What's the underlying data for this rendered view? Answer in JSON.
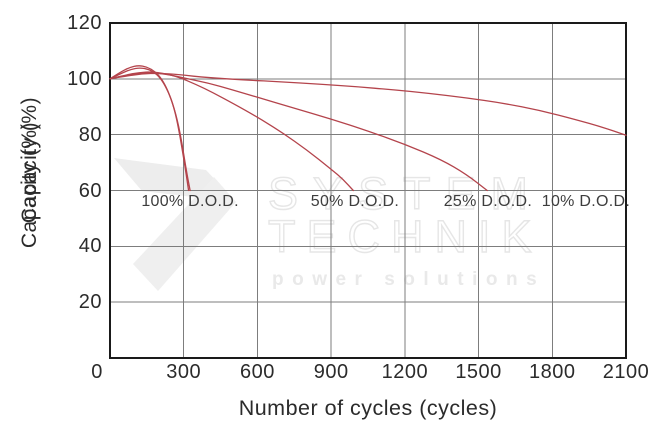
{
  "watermark": {
    "line1": "SYSTEM",
    "line2": "TECHNIK",
    "line3": "power solutions"
  },
  "chart_data": {
    "type": "line",
    "title": "",
    "xlabel": "Number of cycles (cycles)",
    "ylabel": "Capacity (%)",
    "ylabel_duplicated": true,
    "xlim": [
      0,
      2100
    ],
    "ylim": [
      0,
      120
    ],
    "x_ticks": [
      0,
      300,
      600,
      900,
      1200,
      1500,
      1800,
      2100
    ],
    "y_ticks": [
      120,
      100,
      80,
      60,
      40,
      20
    ],
    "grid": true,
    "legend": "inline annotations",
    "line_color": "#b4444c",
    "grid_color": "#7d7d7d",
    "frame_color": "#1a1a1a",
    "annotations": [
      {
        "text": "100% D.O.D.",
        "x": 326,
        "y": 55
      },
      {
        "text": "50% D.O.D.",
        "x": 997,
        "y": 55
      },
      {
        "text": "25% D.O.D.",
        "x": 1538,
        "y": 55
      },
      {
        "text": "10% D.O.D.",
        "x": 1937,
        "y": 55
      }
    ],
    "series": [
      {
        "name": "100% D.O.D.",
        "points": [
          [
            0,
            100
          ],
          [
            40,
            102.3
          ],
          [
            80,
            104.1
          ],
          [
            115,
            104.8
          ],
          [
            150,
            104.3
          ],
          [
            185,
            102.5
          ],
          [
            210,
            100
          ],
          [
            235,
            96
          ],
          [
            260,
            90
          ],
          [
            282,
            81
          ],
          [
            302,
            70.5
          ],
          [
            320,
            60
          ]
        ]
      },
      {
        "name": "100% D.O.D. (duplicate stroke)",
        "points": [
          [
            0,
            100
          ],
          [
            45,
            101.9
          ],
          [
            85,
            103.4
          ],
          [
            122,
            104
          ],
          [
            158,
            103.4
          ],
          [
            192,
            101.6
          ],
          [
            218,
            98.6
          ],
          [
            243,
            94.2
          ],
          [
            268,
            87.5
          ],
          [
            290,
            78.5
          ],
          [
            310,
            67.5
          ],
          [
            326,
            60
          ]
        ]
      },
      {
        "name": "50% D.O.D.",
        "points": [
          [
            0,
            100
          ],
          [
            60,
            101.3
          ],
          [
            120,
            102.3
          ],
          [
            170,
            102.5
          ],
          [
            220,
            101.9
          ],
          [
            280,
            100.6
          ],
          [
            350,
            98
          ],
          [
            420,
            95
          ],
          [
            500,
            91.2
          ],
          [
            600,
            86.3
          ],
          [
            700,
            80.8
          ],
          [
            800,
            74.6
          ],
          [
            900,
            67.6
          ],
          [
            950,
            63.9
          ],
          [
            990,
            60
          ]
        ]
      },
      {
        "name": "25% D.O.D.",
        "points": [
          [
            0,
            100
          ],
          [
            60,
            101.1
          ],
          [
            120,
            102
          ],
          [
            180,
            102.2
          ],
          [
            240,
            101.5
          ],
          [
            300,
            100.3
          ],
          [
            400,
            98.5
          ],
          [
            500,
            96
          ],
          [
            600,
            93.4
          ],
          [
            750,
            89.5
          ],
          [
            900,
            85.6
          ],
          [
            1050,
            81.3
          ],
          [
            1200,
            76.6
          ],
          [
            1350,
            71
          ],
          [
            1450,
            65.8
          ],
          [
            1535,
            60
          ]
        ]
      },
      {
        "name": "10% D.O.D.",
        "points": [
          [
            0,
            100
          ],
          [
            60,
            100.9
          ],
          [
            130,
            101.8
          ],
          [
            200,
            102
          ],
          [
            280,
            101.5
          ],
          [
            400,
            100.4
          ],
          [
            550,
            99.6
          ],
          [
            700,
            98.9
          ],
          [
            850,
            98.1
          ],
          [
            1000,
            97.2
          ],
          [
            1150,
            96.1
          ],
          [
            1300,
            94.8
          ],
          [
            1450,
            93.2
          ],
          [
            1600,
            91.3
          ],
          [
            1750,
            88.7
          ],
          [
            1900,
            85.3
          ],
          [
            2000,
            82.8
          ],
          [
            2100,
            79.8
          ]
        ]
      }
    ]
  }
}
